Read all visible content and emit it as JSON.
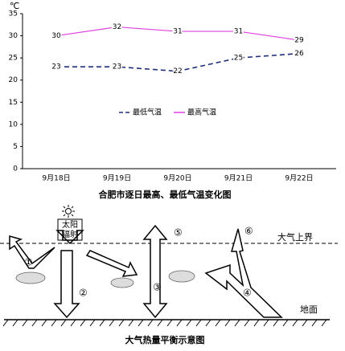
{
  "chart_data": {
    "type": "line",
    "title": "合肥市逐日最高、最低气温变化图",
    "y_unit": "℃",
    "categories": [
      "9月18日",
      "9月19日",
      "9月20日",
      "9月21日",
      "9月22日"
    ],
    "series": [
      {
        "name": "最低气温",
        "color": "#1f2f7a",
        "dashed": true,
        "values": [
          23,
          23,
          22,
          25,
          26
        ]
      },
      {
        "name": "最高气温",
        "color": "#e040e0",
        "dashed": false,
        "values": [
          30,
          32,
          31,
          31,
          29
        ]
      }
    ],
    "ylim": [
      0,
      35
    ],
    "yticks": [
      0,
      5,
      10,
      15,
      20,
      25,
      30,
      35
    ],
    "grid": false,
    "legend": "center"
  },
  "diagram": {
    "title": "大气热量平衡示意图",
    "sun_box": [
      "太阳",
      "辐射"
    ],
    "top_label": "大气上界",
    "ground_label": "地面",
    "markers": [
      "①",
      "②",
      "③",
      "④",
      "⑤",
      "⑥"
    ]
  }
}
